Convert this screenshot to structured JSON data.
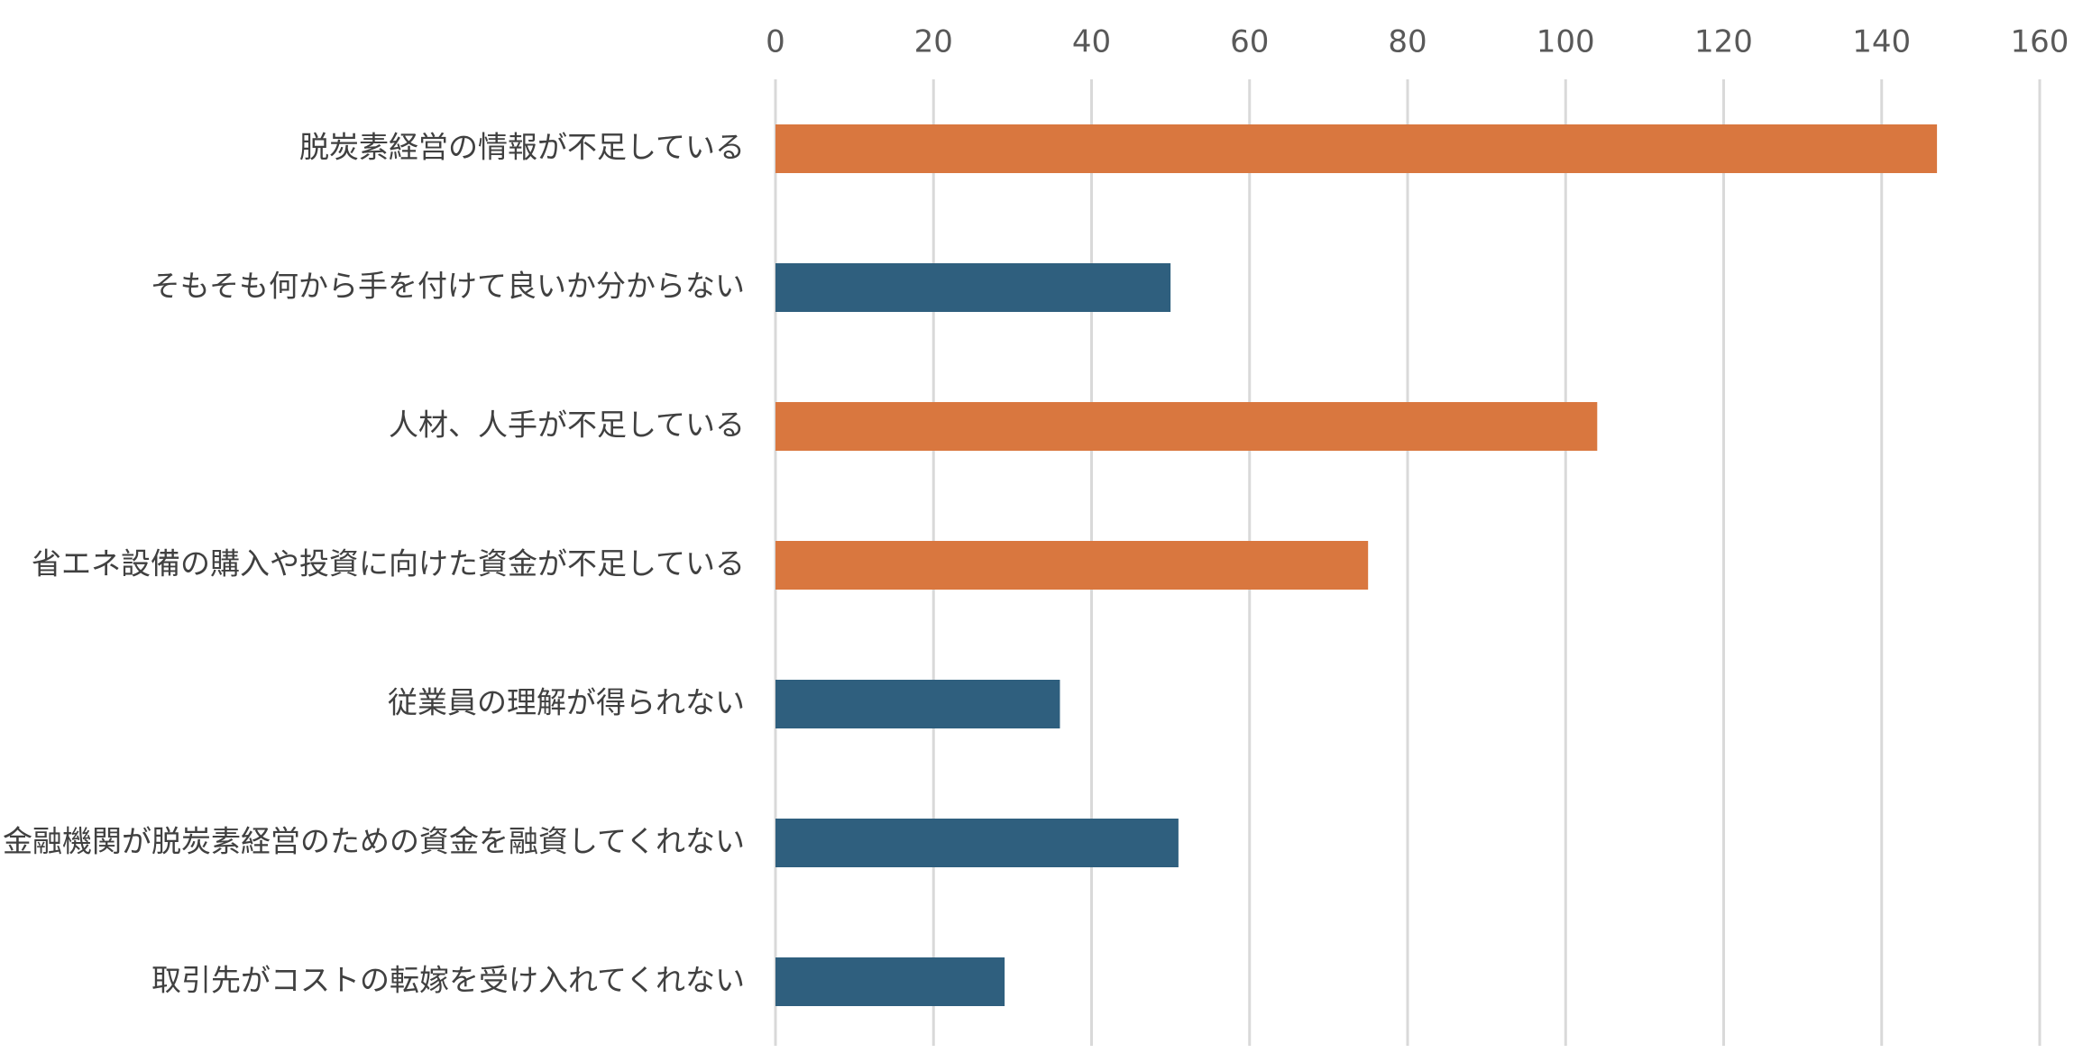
{
  "chart_data": {
    "type": "bar",
    "orientation": "horizontal",
    "title": "",
    "xlabel": "",
    "ylabel": "",
    "xlim": [
      0,
      160
    ],
    "ticks": [
      0,
      20,
      40,
      60,
      80,
      100,
      120,
      140,
      160
    ],
    "tick_labels": [
      "0",
      "20",
      "40",
      "60",
      "80",
      "100",
      "120",
      "140",
      "160"
    ],
    "grid": true,
    "legend": "none",
    "axis_position": "top",
    "categories": [
      "脱炭素経営の情報が不足している",
      "そもそも何から手を付けて良いか分からない",
      "人材、人手が不足している",
      "省エネ設備の購入や投資に向けた資金が不足している",
      "従業員の理解が得られない",
      "金融機関が脱炭素経営のための資金を融資してくれない",
      "取引先がコストの転嫁を受け入れてくれない"
    ],
    "values": [
      147,
      50,
      104,
      75,
      36,
      51,
      29
    ],
    "highlight": [
      true,
      false,
      true,
      true,
      false,
      false,
      false
    ],
    "colors": {
      "highlight": "#d9773f",
      "default": "#2f5f7e"
    }
  }
}
